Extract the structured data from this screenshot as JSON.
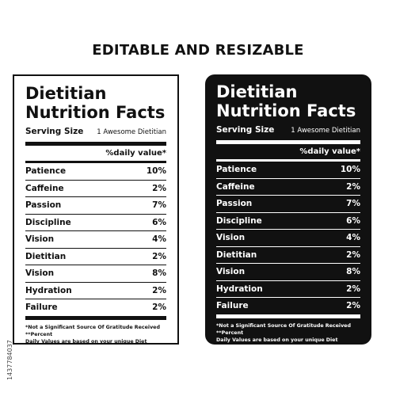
{
  "headline": "EDITABLE AND RESIZABLE",
  "stock_id": "1437784037",
  "label": {
    "title_line1": "Dietitian",
    "title_line2": "Nutrition Facts",
    "serving_label": "Serving Size",
    "serving_value": "1 Awesome Dietitian",
    "daily_value_header": "%daily value*",
    "rows": [
      {
        "name": "Patience",
        "value": "10%"
      },
      {
        "name": "Caffeine",
        "value": "2%"
      },
      {
        "name": "Passion",
        "value": "7%"
      },
      {
        "name": "Discipline",
        "value": "6%"
      },
      {
        "name": "Vision",
        "value": "4%"
      },
      {
        "name": "Dietitian",
        "value": "2%"
      },
      {
        "name": "Vision",
        "value": "8%"
      },
      {
        "name": "Hydration",
        "value": "2%"
      },
      {
        "name": "Failure",
        "value": "2%"
      }
    ],
    "footnote_line1": "*Not a Significant Source Of Gratitude Received **Percent",
    "footnote_line2": "Daily Values are based on your  unique Diet"
  },
  "colors": {
    "light_label_bg": "#ffffff",
    "dark_label_bg": "#111111",
    "ink": "#111111"
  }
}
